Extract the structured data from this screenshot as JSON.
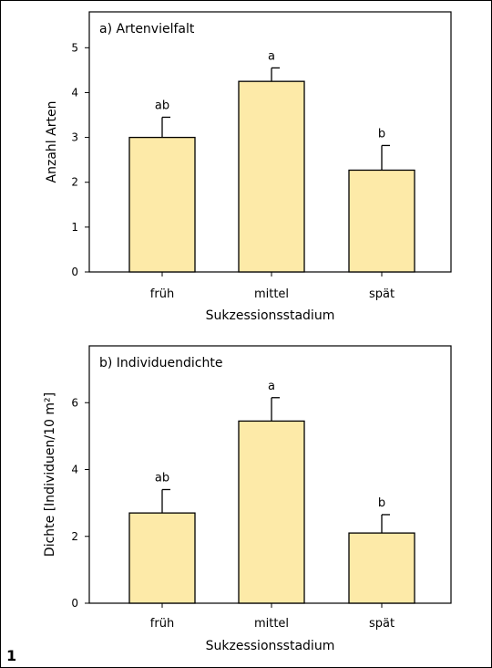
{
  "figure_number": "1",
  "style": {
    "bar_fill": "#fdeaa8",
    "bar_stroke": "#000000",
    "error_bar_color": "#000000"
  },
  "chart_data": [
    {
      "type": "bar",
      "title": "a) Artenvielfalt",
      "xlabel": "Sukzessionsstadium",
      "ylabel": "Anzahl Arten",
      "categories": [
        "früh",
        "mittel",
        "spät"
      ],
      "values": [
        3.0,
        4.25,
        2.27
      ],
      "errors": [
        0.45,
        0.3,
        0.55
      ],
      "significance_letters": [
        "ab",
        "a",
        "b"
      ],
      "ylim": [
        0,
        5.8
      ],
      "yticks": [
        0,
        1,
        2,
        3,
        4,
        5
      ],
      "grid": false
    },
    {
      "type": "bar",
      "title": "b) Individuendichte",
      "xlabel": "Sukzessionsstadium",
      "ylabel": "Dichte [Individuen/10 m²]",
      "categories": [
        "früh",
        "mittel",
        "spät"
      ],
      "values": [
        2.7,
        5.45,
        2.1
      ],
      "errors": [
        0.7,
        0.7,
        0.55
      ],
      "significance_letters": [
        "ab",
        "a",
        "b"
      ],
      "ylim": [
        0,
        7.7
      ],
      "yticks": [
        0,
        2,
        4,
        6
      ],
      "grid": false
    }
  ]
}
